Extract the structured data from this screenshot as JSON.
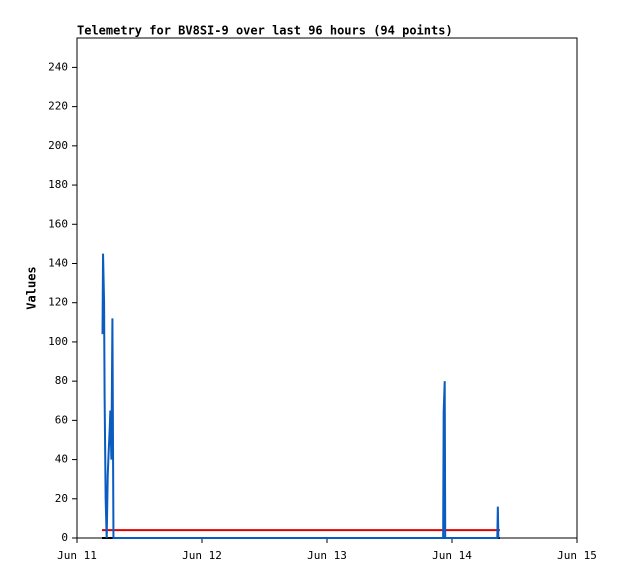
{
  "chart_data": {
    "type": "line",
    "title": "Telemetry for BV8SI-9 over last 96 hours (94 points)",
    "y_label": "Values",
    "xlim": [
      0,
      96
    ],
    "xticks": [
      {
        "value": 0,
        "label": "Jun 11"
      },
      {
        "value": 24,
        "label": "Jun 12"
      },
      {
        "value": 48,
        "label": "Jun 13"
      },
      {
        "value": 72,
        "label": "Jun 14"
      },
      {
        "value": 96,
        "label": "Jun 15"
      }
    ],
    "ylim": [
      0,
      255
    ],
    "yticks": [
      0,
      20,
      40,
      60,
      80,
      100,
      120,
      140,
      160,
      180,
      200,
      220,
      240
    ],
    "series": [
      {
        "color": "#000000",
        "x": [
          4.8,
          81.2
        ],
        "values": [
          0,
          0
        ]
      },
      {
        "color": "#e00000",
        "x": [
          4.8,
          81.2
        ],
        "values": [
          4,
          4
        ]
      },
      {
        "color": "#0a5cc0",
        "x": [
          4.9,
          5.0,
          5.2,
          5.3,
          5.5,
          5.7,
          5.9,
          6.1,
          6.3,
          6.4,
          6.6,
          6.8,
          7.0,
          70.3,
          70.4,
          70.6,
          70.7,
          80.7,
          80.8,
          80.9
        ],
        "values": [
          104,
          145,
          120,
          72,
          20,
          0,
          32,
          45,
          57,
          65,
          40,
          112,
          0,
          0,
          64,
          80,
          0,
          0,
          16,
          0
        ]
      }
    ]
  }
}
